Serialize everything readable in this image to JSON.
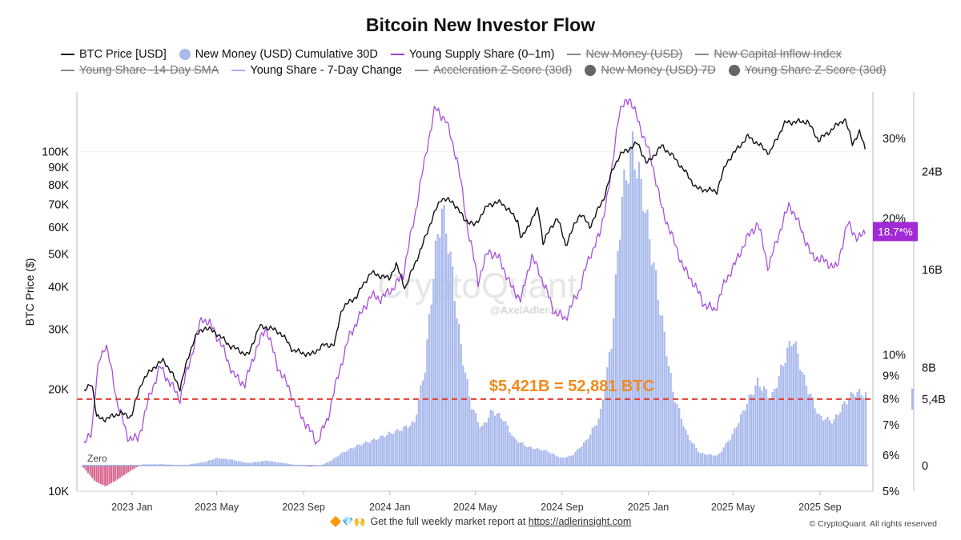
{
  "title": "Bitcoin New Investor Flow",
  "legend": {
    "row1": [
      {
        "label": "BTC Price [USD]",
        "color": "#111111",
        "marker": "line",
        "active": true,
        "icon": "line-swatch"
      },
      {
        "label": "New Money (USD) Cumulative 30D",
        "color": "#a9b9ec",
        "marker": "dot",
        "active": true,
        "icon": "dot-swatch"
      },
      {
        "label": "Young Supply Share (0–1m)",
        "color": "#a03fd6",
        "marker": "line",
        "active": true,
        "icon": "line-swatch"
      },
      {
        "label": "New Money (USD)",
        "color": "#888888",
        "marker": "line",
        "active": false,
        "icon": "line-swatch"
      },
      {
        "label": "New Capital Inflow Index",
        "color": "#888888",
        "marker": "line",
        "active": false,
        "icon": "line-swatch"
      }
    ],
    "row2": [
      {
        "label": "Young Share -14-Day SMA",
        "color": "#888888",
        "marker": "line",
        "active": false,
        "icon": "line-swatch"
      },
      {
        "label": "Young Share - 7-Day Change",
        "color": "#b7a6f3",
        "marker": "line",
        "active": true,
        "icon": "line-swatch"
      },
      {
        "label": "Acceleration Z-Score (30d)",
        "color": "#888888",
        "marker": "line",
        "active": false,
        "icon": "line-swatch"
      },
      {
        "label": "New Money (USD) 7D",
        "color": "#666666",
        "marker": "dot",
        "active": false,
        "icon": "dot-swatch"
      },
      {
        "label": "Young Share Z-Score (30d)",
        "color": "#666666",
        "marker": "dot",
        "active": false,
        "icon": "dot-swatch"
      }
    ]
  },
  "footer": {
    "prefix": "Get the full weekly market report at",
    "link": "https://adlerinsight.com",
    "emoji": "🔶💎🙌",
    "copyright": "© CryptoQuant. All rights reserved"
  },
  "watermark": {
    "brand": "CryptoQuant",
    "handle": "@AxelAdlerJr"
  },
  "chart_data": {
    "type": "line",
    "x_range": [
      "2022-10-15",
      "2025-11-15"
    ],
    "x_ticks": [
      {
        "date": "2023-01-01",
        "label": "2023 Jan"
      },
      {
        "date": "2023-05-01",
        "label": "2023 May"
      },
      {
        "date": "2023-09-01",
        "label": "2023 Sep"
      },
      {
        "date": "2024-01-01",
        "label": "2024 Jan"
      },
      {
        "date": "2024-05-01",
        "label": "2024 May"
      },
      {
        "date": "2024-09-01",
        "label": "2024 Sep"
      },
      {
        "date": "2025-01-01",
        "label": "2025 Jan"
      },
      {
        "date": "2025-05-01",
        "label": "2025 May"
      },
      {
        "date": "2025-09-01",
        "label": "2025 Sep"
      }
    ],
    "y_left": {
      "label": "BTC Price ($)",
      "scale": "log",
      "range": [
        10000,
        150000
      ],
      "ticks": [
        {
          "value": 10000,
          "label": "10K"
        },
        {
          "value": 20000,
          "label": "20K"
        },
        {
          "value": 30000,
          "label": "30K"
        },
        {
          "value": 40000,
          "label": "40K"
        },
        {
          "value": 50000,
          "label": "50K"
        },
        {
          "value": 60000,
          "label": "60K"
        },
        {
          "value": 70000,
          "label": "70K"
        },
        {
          "value": 80000,
          "label": "80K"
        },
        {
          "value": 90000,
          "label": "90K"
        },
        {
          "value": 100000,
          "label": "100K"
        }
      ]
    },
    "y_share": {
      "scale": "log",
      "range": [
        5,
        38
      ],
      "ticks": [
        {
          "value": 5,
          "label": "5%"
        },
        {
          "value": 6,
          "label": "6%"
        },
        {
          "value": 7,
          "label": "7%"
        },
        {
          "value": 8,
          "label": "8%"
        },
        {
          "value": 9,
          "label": "9%"
        },
        {
          "value": 10,
          "label": "10%"
        },
        {
          "value": 20,
          "label": "20%"
        },
        {
          "value": 30,
          "label": "30%"
        }
      ]
    },
    "y_money": {
      "scale": "linear",
      "range": [
        -2.1,
        30.5
      ],
      "ticks": [
        {
          "value": 0,
          "label": "0"
        },
        {
          "value": 5.4,
          "label": "5,4B"
        },
        {
          "value": 8,
          "label": "8B"
        },
        {
          "value": 16,
          "label": "16B"
        },
        {
          "value": 24,
          "label": "24B"
        }
      ]
    },
    "threshold": {
      "value": 5.421,
      "label": "$5,421B = 52,881 BTC",
      "color": "#e23b2e"
    },
    "zero_label": "Zero",
    "current_badge": {
      "label": "18.7*%",
      "color": "#a12ad6"
    },
    "series": [
      {
        "name": "BTC Price [USD]",
        "color": "#111111",
        "axis": "left",
        "points": [
          [
            "2022-10-25",
            19500
          ],
          [
            "2022-11-05",
            21000
          ],
          [
            "2022-11-12",
            16500
          ],
          [
            "2022-11-25",
            16300
          ],
          [
            "2022-12-15",
            17000
          ],
          [
            "2022-12-31",
            16550
          ],
          [
            "2023-01-15",
            21000
          ],
          [
            "2023-01-31",
            23100
          ],
          [
            "2023-02-15",
            24300
          ],
          [
            "2023-03-10",
            20100
          ],
          [
            "2023-03-31",
            28400
          ],
          [
            "2023-04-14",
            30400
          ],
          [
            "2023-04-30",
            29300
          ],
          [
            "2023-05-20",
            26800
          ],
          [
            "2023-06-15",
            25100
          ],
          [
            "2023-06-30",
            30500
          ],
          [
            "2023-07-15",
            30300
          ],
          [
            "2023-07-31",
            29200
          ],
          [
            "2023-08-17",
            26000
          ],
          [
            "2023-09-11",
            25200
          ],
          [
            "2023-09-30",
            26970
          ],
          [
            "2023-10-15",
            27000
          ],
          [
            "2023-10-25",
            34500
          ],
          [
            "2023-11-15",
            37500
          ],
          [
            "2023-12-05",
            44000
          ],
          [
            "2023-12-31",
            42300
          ],
          [
            "2024-01-10",
            46500
          ],
          [
            "2024-01-23",
            39500
          ],
          [
            "2024-02-15",
            52000
          ],
          [
            "2024-02-28",
            62000
          ],
          [
            "2024-03-14",
            73000
          ],
          [
            "2024-03-31",
            71000
          ],
          [
            "2024-04-15",
            63500
          ],
          [
            "2024-04-30",
            60600
          ],
          [
            "2024-05-20",
            70000
          ],
          [
            "2024-06-07",
            71000
          ],
          [
            "2024-06-30",
            62700
          ],
          [
            "2024-07-05",
            55000
          ],
          [
            "2024-07-29",
            68000
          ],
          [
            "2024-08-05",
            54000
          ],
          [
            "2024-08-25",
            64000
          ],
          [
            "2024-09-06",
            53000
          ],
          [
            "2024-09-27",
            66000
          ],
          [
            "2024-10-10",
            60000
          ],
          [
            "2024-10-29",
            72000
          ],
          [
            "2024-11-13",
            90000
          ],
          [
            "2024-11-22",
            98000
          ],
          [
            "2024-12-17",
            106000
          ],
          [
            "2024-12-30",
            92000
          ],
          [
            "2025-01-20",
            104000
          ],
          [
            "2025-02-05",
            97000
          ],
          [
            "2025-02-28",
            84000
          ],
          [
            "2025-03-10",
            78000
          ],
          [
            "2025-04-08",
            76500
          ],
          [
            "2025-04-22",
            93000
          ],
          [
            "2025-05-22",
            111000
          ],
          [
            "2025-06-22",
            99000
          ],
          [
            "2025-07-14",
            122000
          ],
          [
            "2025-08-14",
            123000
          ],
          [
            "2025-08-30",
            108000
          ],
          [
            "2025-09-15",
            115000
          ],
          [
            "2025-10-06",
            125000
          ],
          [
            "2025-10-17",
            106000
          ],
          [
            "2025-10-27",
            114000
          ],
          [
            "2025-11-05",
            101000
          ]
        ]
      },
      {
        "name": "Young Supply Share (0–1m)",
        "color": "#a94fdc",
        "axis": "share",
        "points": [
          [
            "2022-10-25",
            6.3
          ],
          [
            "2022-11-05",
            6.8
          ],
          [
            "2022-11-15",
            9.6
          ],
          [
            "2022-11-25",
            10.6
          ],
          [
            "2022-12-10",
            8.0
          ],
          [
            "2022-12-25",
            6.6
          ],
          [
            "2023-01-10",
            6.5
          ],
          [
            "2023-01-25",
            8.0
          ],
          [
            "2023-02-10",
            9.4
          ],
          [
            "2023-02-25",
            8.6
          ],
          [
            "2023-03-10",
            8.0
          ],
          [
            "2023-03-25",
            9.8
          ],
          [
            "2023-04-10",
            12.1
          ],
          [
            "2023-04-25",
            11.5
          ],
          [
            "2023-05-10",
            10.3
          ],
          [
            "2023-05-25",
            9.0
          ],
          [
            "2023-06-10",
            8.6
          ],
          [
            "2023-06-25",
            10.2
          ],
          [
            "2023-07-10",
            11.5
          ],
          [
            "2023-07-25",
            9.5
          ],
          [
            "2023-08-10",
            8.5
          ],
          [
            "2023-08-25",
            7.5
          ],
          [
            "2023-09-10",
            6.8
          ],
          [
            "2023-09-20",
            6.4
          ],
          [
            "2023-10-05",
            7.2
          ],
          [
            "2023-10-20",
            9.0
          ],
          [
            "2023-11-05",
            11.0
          ],
          [
            "2023-11-20",
            12.2
          ],
          [
            "2023-12-05",
            13.5
          ],
          [
            "2023-12-20",
            13.3
          ],
          [
            "2024-01-05",
            14.0
          ],
          [
            "2024-01-20",
            15.0
          ],
          [
            "2024-02-05",
            20.0
          ],
          [
            "2024-02-20",
            27.0
          ],
          [
            "2024-03-05",
            35.0
          ],
          [
            "2024-03-20",
            33.0
          ],
          [
            "2024-04-05",
            27.0
          ],
          [
            "2024-04-20",
            19.0
          ],
          [
            "2024-05-05",
            14.5
          ],
          [
            "2024-05-20",
            17.0
          ],
          [
            "2024-06-05",
            16.2
          ],
          [
            "2024-06-20",
            14.2
          ],
          [
            "2024-07-05",
            13.2
          ],
          [
            "2024-07-20",
            16.5
          ],
          [
            "2024-08-05",
            14.5
          ],
          [
            "2024-08-20",
            12.5
          ],
          [
            "2024-09-05",
            12.0
          ],
          [
            "2024-09-25",
            13.8
          ],
          [
            "2024-10-10",
            16.5
          ],
          [
            "2024-10-25",
            18.5
          ],
          [
            "2024-11-10",
            25.0
          ],
          [
            "2024-11-20",
            34.0
          ],
          [
            "2024-12-05",
            37.0
          ],
          [
            "2024-12-20",
            32.0
          ],
          [
            "2025-01-05",
            27.0
          ],
          [
            "2025-01-20",
            21.0
          ],
          [
            "2025-02-05",
            18.0
          ],
          [
            "2025-02-20",
            15.5
          ],
          [
            "2025-03-05",
            14.5
          ],
          [
            "2025-03-20",
            13.0
          ],
          [
            "2025-04-05",
            12.5
          ],
          [
            "2025-04-20",
            14.5
          ],
          [
            "2025-05-05",
            16.0
          ],
          [
            "2025-05-20",
            18.0
          ],
          [
            "2025-06-05",
            19.5
          ],
          [
            "2025-06-20",
            15.5
          ],
          [
            "2025-07-05",
            18.5
          ],
          [
            "2025-07-20",
            21.5
          ],
          [
            "2025-08-05",
            19.0
          ],
          [
            "2025-08-20",
            16.5
          ],
          [
            "2025-09-05",
            16.2
          ],
          [
            "2025-09-25",
            15.5
          ],
          [
            "2025-10-10",
            19.5
          ],
          [
            "2025-10-25",
            18.0
          ],
          [
            "2025-11-05",
            18.7
          ]
        ]
      },
      {
        "name": "New Money (USD) Cumulative 30D",
        "color": "#a9b9ec",
        "axis": "money",
        "style": "columns",
        "points": [
          [
            "2022-10-25",
            -0.2
          ],
          [
            "2022-11-10",
            -1.3
          ],
          [
            "2022-11-25",
            -1.7
          ],
          [
            "2022-12-10",
            -1.2
          ],
          [
            "2022-12-31",
            -0.4
          ],
          [
            "2023-01-15",
            0.1
          ],
          [
            "2023-02-15",
            0.1
          ],
          [
            "2023-03-15",
            0.0
          ],
          [
            "2023-04-15",
            0.3
          ],
          [
            "2023-05-01",
            0.6
          ],
          [
            "2023-05-20",
            0.5
          ],
          [
            "2023-06-15",
            0.2
          ],
          [
            "2023-07-10",
            0.4
          ],
          [
            "2023-08-15",
            0.1
          ],
          [
            "2023-09-10",
            -0.1
          ],
          [
            "2023-09-25",
            0.0
          ],
          [
            "2023-10-10",
            0.4
          ],
          [
            "2023-10-25",
            1.0
          ],
          [
            "2023-11-15",
            1.6
          ],
          [
            "2023-12-10",
            2.1
          ],
          [
            "2023-12-31",
            2.6
          ],
          [
            "2024-01-15",
            2.9
          ],
          [
            "2024-02-05",
            3.5
          ],
          [
            "2024-02-20",
            8.0
          ],
          [
            "2024-03-05",
            17.0
          ],
          [
            "2024-03-15",
            21.0
          ],
          [
            "2024-03-25",
            18.0
          ],
          [
            "2024-04-10",
            10.0
          ],
          [
            "2024-04-25",
            5.0
          ],
          [
            "2024-05-10",
            3.0
          ],
          [
            "2024-05-25",
            4.5
          ],
          [
            "2024-06-10",
            3.8
          ],
          [
            "2024-06-25",
            2.2
          ],
          [
            "2024-07-15",
            1.5
          ],
          [
            "2024-08-10",
            1.2
          ],
          [
            "2024-08-31",
            0.6
          ],
          [
            "2024-09-15",
            0.8
          ],
          [
            "2024-10-05",
            2.0
          ],
          [
            "2024-10-25",
            4.0
          ],
          [
            "2024-11-10",
            10.0
          ],
          [
            "2024-11-25",
            22.0
          ],
          [
            "2024-12-10",
            26.0
          ],
          [
            "2024-12-25",
            22.0
          ],
          [
            "2025-01-15",
            14.0
          ],
          [
            "2025-02-05",
            6.0
          ],
          [
            "2025-02-25",
            2.5
          ],
          [
            "2025-03-15",
            1.0
          ],
          [
            "2025-04-10",
            0.8
          ],
          [
            "2025-04-30",
            2.5
          ],
          [
            "2025-05-20",
            5.0
          ],
          [
            "2025-06-05",
            6.8
          ],
          [
            "2025-06-25",
            5.5
          ],
          [
            "2025-07-15",
            9.0
          ],
          [
            "2025-07-25",
            10.5
          ],
          [
            "2025-08-10",
            7.0
          ],
          [
            "2025-08-31",
            4.0
          ],
          [
            "2025-09-20",
            3.6
          ],
          [
            "2025-10-05",
            5.0
          ],
          [
            "2025-10-20",
            6.0
          ],
          [
            "2025-11-05",
            5.8
          ]
        ]
      }
    ]
  }
}
